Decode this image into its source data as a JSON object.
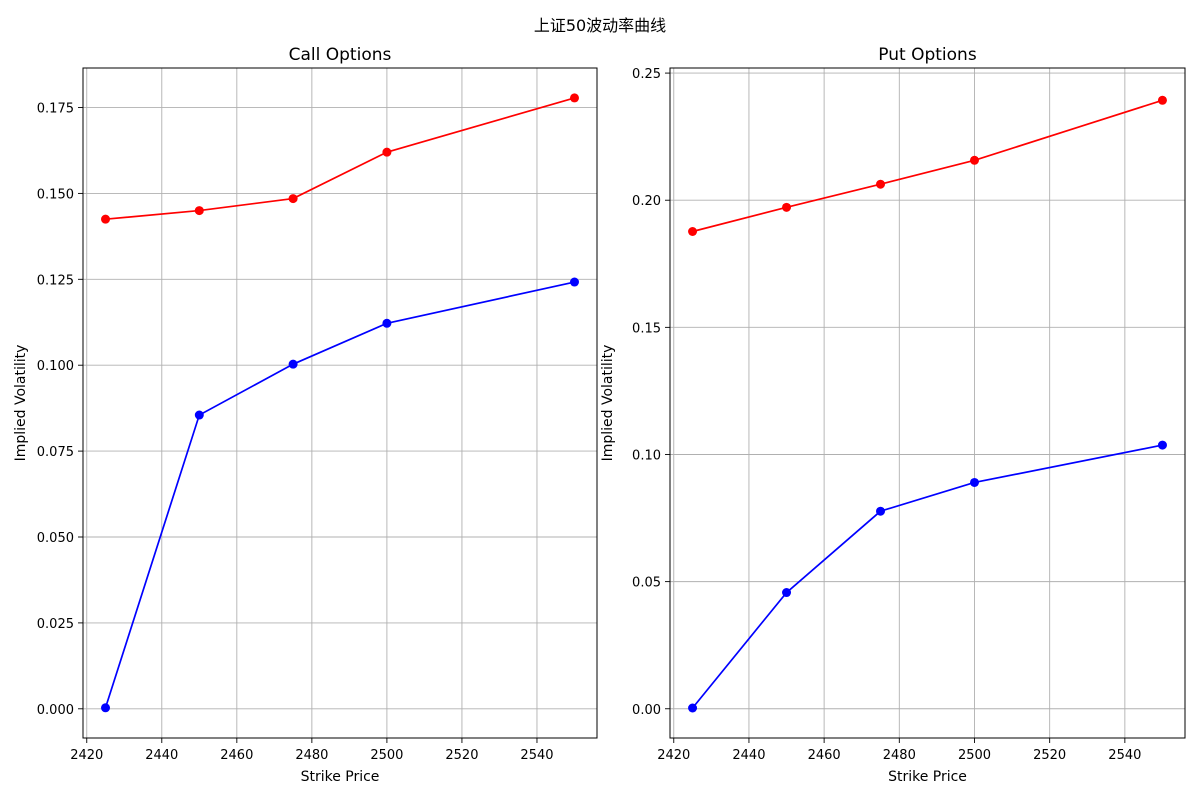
{
  "figure": {
    "title": "上证50波动率曲线"
  },
  "chart_data": [
    {
      "type": "line",
      "title": "Call Options",
      "xlabel": "Strike Price",
      "ylabel": "Implied Volatility",
      "x": [
        2425,
        2450,
        2475,
        2500,
        2550
      ],
      "xlim": [
        2419,
        2556
      ],
      "ylim": [
        -0.0085,
        0.1865
      ],
      "xticks": [
        "2420",
        "2440",
        "2460",
        "2480",
        "2500",
        "2520",
        "2540"
      ],
      "yticks": [
        "0.000",
        "0.025",
        "0.050",
        "0.075",
        "0.100",
        "0.125",
        "0.150",
        "0.175"
      ],
      "grid": true,
      "series": [
        {
          "color": "#ff0000",
          "values": [
            0.1425,
            0.145,
            0.1485,
            0.162,
            0.1778
          ]
        },
        {
          "color": "#0000ff",
          "values": [
            0.0003,
            0.0855,
            0.1003,
            0.1122,
            0.1242
          ]
        }
      ]
    },
    {
      "type": "line",
      "title": "Put Options",
      "xlabel": "Strike Price",
      "ylabel": "Implied Volatility",
      "x": [
        2425,
        2450,
        2475,
        2500,
        2550
      ],
      "xlim": [
        2419,
        2556
      ],
      "ylim": [
        -0.0115,
        0.252
      ],
      "xticks": [
        "2420",
        "2440",
        "2460",
        "2480",
        "2500",
        "2520",
        "2540"
      ],
      "yticks": [
        "0.00",
        "0.05",
        "0.10",
        "0.15",
        "0.20",
        "0.25"
      ],
      "grid": true,
      "series": [
        {
          "color": "#ff0000",
          "values": [
            0.1877,
            0.1972,
            0.2063,
            0.2157,
            0.2393
          ]
        },
        {
          "color": "#0000ff",
          "values": [
            0.0003,
            0.0457,
            0.0777,
            0.089,
            0.1037
          ]
        }
      ]
    }
  ]
}
